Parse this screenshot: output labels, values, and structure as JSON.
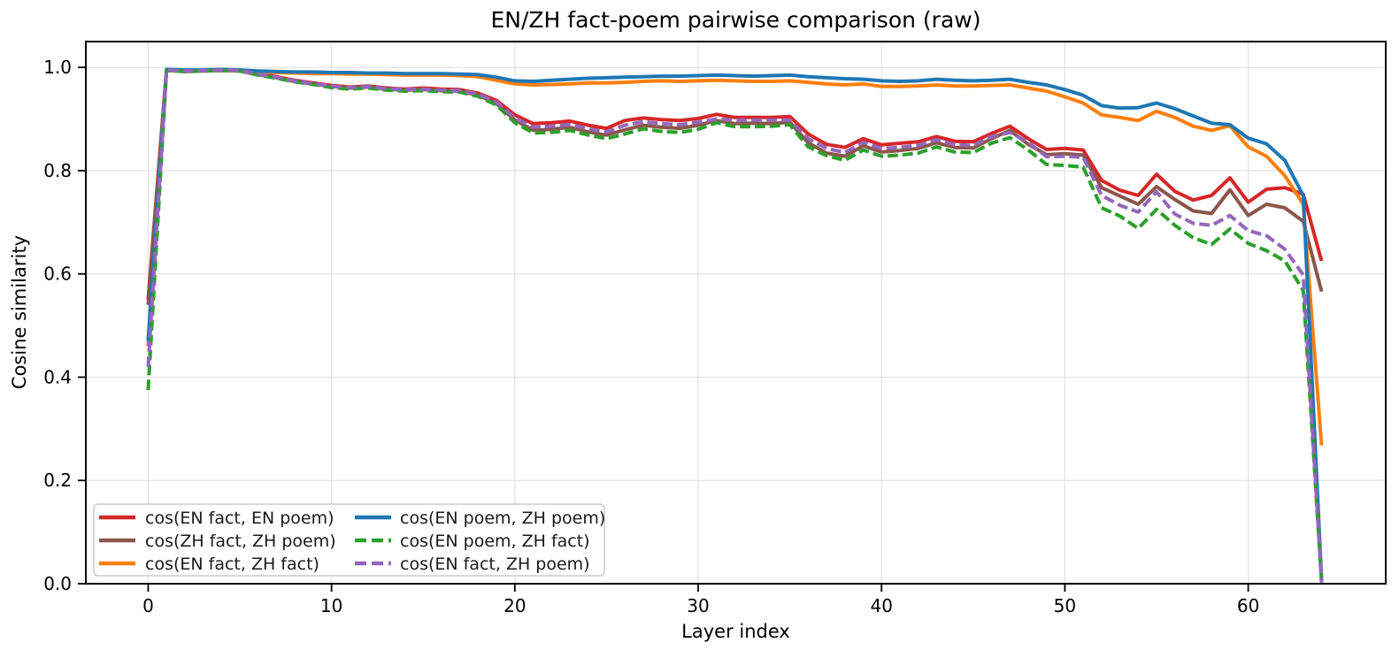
{
  "chart_data": {
    "type": "line",
    "title": "EN/ZH fact-poem pairwise comparison (raw)",
    "xlabel": "Layer index",
    "ylabel": "Cosine similarity",
    "xlim": [
      -3.4,
      67.5
    ],
    "ylim": [
      0,
      1.05
    ],
    "xticks": [
      0,
      10,
      20,
      30,
      40,
      50,
      60
    ],
    "yticks": [
      0.0,
      0.2,
      0.4,
      0.6,
      0.8,
      1.0
    ],
    "ytick_labels": [
      "0.0",
      "0.2",
      "0.4",
      "0.6",
      "0.8",
      "1.0"
    ],
    "grid": true,
    "grid_color": "#e2e2e2",
    "spine_color": "#000000",
    "legend_position": "lower left",
    "x": [
      0,
      1,
      2,
      3,
      4,
      5,
      6,
      7,
      8,
      9,
      10,
      11,
      12,
      13,
      14,
      15,
      16,
      17,
      18,
      19,
      20,
      21,
      22,
      23,
      24,
      25,
      26,
      27,
      28,
      29,
      30,
      31,
      32,
      33,
      34,
      35,
      36,
      37,
      38,
      39,
      40,
      41,
      42,
      43,
      44,
      45,
      46,
      47,
      48,
      49,
      50,
      51,
      52,
      53,
      54,
      55,
      56,
      57,
      58,
      59,
      60,
      61,
      62,
      63,
      64
    ],
    "series": [
      {
        "key": "en-fact-en-poem",
        "name": "cos(EN fact, EN poem)",
        "color": "#d62728",
        "style": "solid",
        "values": [
          0.55,
          0.995,
          0.993,
          0.994,
          0.995,
          0.994,
          0.988,
          0.982,
          0.975,
          0.97,
          0.965,
          0.962,
          0.964,
          0.96,
          0.958,
          0.96,
          0.958,
          0.957,
          0.95,
          0.936,
          0.908,
          0.891,
          0.893,
          0.896,
          0.888,
          0.882,
          0.897,
          0.902,
          0.899,
          0.897,
          0.901,
          0.909,
          0.903,
          0.903,
          0.903,
          0.905,
          0.871,
          0.851,
          0.845,
          0.862,
          0.85,
          0.853,
          0.856,
          0.866,
          0.857,
          0.856,
          0.872,
          0.886,
          0.862,
          0.841,
          0.843,
          0.84,
          0.781,
          0.762,
          0.752,
          0.793,
          0.76,
          0.743,
          0.752,
          0.786,
          0.739,
          0.764,
          0.767,
          0.754,
          0.625
        ]
      },
      {
        "key": "zh-fact-zh-poem",
        "name": "cos(ZH fact, ZH poem)",
        "color": "#8c564b",
        "style": "solid",
        "values": [
          0.54,
          0.994,
          0.992,
          0.993,
          0.994,
          0.993,
          0.986,
          0.98,
          0.973,
          0.968,
          0.963,
          0.96,
          0.962,
          0.958,
          0.956,
          0.957,
          0.955,
          0.954,
          0.946,
          0.93,
          0.898,
          0.878,
          0.88,
          0.884,
          0.875,
          0.869,
          0.879,
          0.888,
          0.884,
          0.882,
          0.888,
          0.897,
          0.891,
          0.892,
          0.891,
          0.894,
          0.854,
          0.834,
          0.828,
          0.848,
          0.836,
          0.839,
          0.843,
          0.854,
          0.845,
          0.844,
          0.862,
          0.878,
          0.851,
          0.831,
          0.833,
          0.83,
          0.767,
          0.751,
          0.735,
          0.769,
          0.744,
          0.722,
          0.717,
          0.763,
          0.713,
          0.735,
          0.728,
          0.702,
          0.566
        ]
      },
      {
        "key": "en-fact-zh-fact",
        "name": "cos(EN fact, ZH fact)",
        "color": "#ff7f0e",
        "style": "solid",
        "values": [
          0.46,
          0.994,
          0.993,
          0.994,
          0.995,
          0.994,
          0.991,
          0.99,
          0.989,
          0.988,
          0.988,
          0.987,
          0.987,
          0.986,
          0.985,
          0.985,
          0.985,
          0.984,
          0.982,
          0.975,
          0.968,
          0.966,
          0.967,
          0.968,
          0.97,
          0.97,
          0.971,
          0.973,
          0.974,
          0.973,
          0.974,
          0.975,
          0.974,
          0.973,
          0.973,
          0.974,
          0.971,
          0.968,
          0.966,
          0.968,
          0.963,
          0.963,
          0.964,
          0.966,
          0.964,
          0.964,
          0.965,
          0.966,
          0.96,
          0.954,
          0.943,
          0.931,
          0.908,
          0.903,
          0.897,
          0.915,
          0.903,
          0.886,
          0.878,
          0.887,
          0.846,
          0.828,
          0.79,
          0.735,
          0.268
        ]
      },
      {
        "key": "en-poem-zh-poem",
        "name": "cos(EN poem, ZH poem)",
        "color": "#1f77b4",
        "style": "solid",
        "values": [
          0.47,
          0.996,
          0.995,
          0.995,
          0.996,
          0.995,
          0.993,
          0.992,
          0.991,
          0.991,
          0.99,
          0.99,
          0.989,
          0.989,
          0.988,
          0.988,
          0.988,
          0.987,
          0.986,
          0.981,
          0.974,
          0.973,
          0.975,
          0.977,
          0.979,
          0.98,
          0.981,
          0.982,
          0.983,
          0.983,
          0.984,
          0.985,
          0.984,
          0.983,
          0.984,
          0.985,
          0.982,
          0.98,
          0.978,
          0.977,
          0.974,
          0.973,
          0.974,
          0.977,
          0.975,
          0.974,
          0.975,
          0.977,
          0.971,
          0.966,
          0.957,
          0.946,
          0.926,
          0.921,
          0.922,
          0.931,
          0.92,
          0.906,
          0.892,
          0.889,
          0.863,
          0.852,
          0.82,
          0.752,
          0.008
        ]
      },
      {
        "key": "en-poem-zh-fact",
        "name": "cos(EN poem, ZH fact)",
        "color": "#2ca02c",
        "style": "dashed",
        "values": [
          0.375,
          0.994,
          0.992,
          0.993,
          0.994,
          0.993,
          0.985,
          0.979,
          0.972,
          0.967,
          0.961,
          0.958,
          0.96,
          0.956,
          0.954,
          0.955,
          0.953,
          0.952,
          0.944,
          0.927,
          0.893,
          0.873,
          0.874,
          0.878,
          0.869,
          0.862,
          0.871,
          0.881,
          0.876,
          0.874,
          0.88,
          0.893,
          0.885,
          0.885,
          0.886,
          0.889,
          0.846,
          0.829,
          0.82,
          0.84,
          0.828,
          0.83,
          0.834,
          0.846,
          0.836,
          0.835,
          0.853,
          0.864,
          0.84,
          0.812,
          0.81,
          0.807,
          0.728,
          0.712,
          0.688,
          0.725,
          0.694,
          0.67,
          0.657,
          0.687,
          0.659,
          0.645,
          0.625,
          0.568,
          0.005
        ]
      },
      {
        "key": "en-fact-zh-poem",
        "name": "cos(EN fact, ZH poem)",
        "color": "#9467bd",
        "style": "dashed",
        "values": [
          0.42,
          0.995,
          0.993,
          0.994,
          0.995,
          0.994,
          0.987,
          0.981,
          0.974,
          0.969,
          0.964,
          0.961,
          0.963,
          0.959,
          0.957,
          0.958,
          0.956,
          0.955,
          0.948,
          0.933,
          0.902,
          0.884,
          0.886,
          0.889,
          0.881,
          0.875,
          0.888,
          0.895,
          0.891,
          0.889,
          0.894,
          0.9,
          0.898,
          0.898,
          0.898,
          0.898,
          0.862,
          0.843,
          0.835,
          0.855,
          0.843,
          0.845,
          0.849,
          0.86,
          0.85,
          0.849,
          0.866,
          0.874,
          0.855,
          0.827,
          0.828,
          0.826,
          0.752,
          0.733,
          0.72,
          0.759,
          0.716,
          0.698,
          0.694,
          0.713,
          0.684,
          0.674,
          0.648,
          0.598,
          0.002
        ]
      }
    ],
    "legend_columns": [
      [
        0,
        1,
        2
      ],
      [
        3,
        4,
        5
      ]
    ]
  }
}
